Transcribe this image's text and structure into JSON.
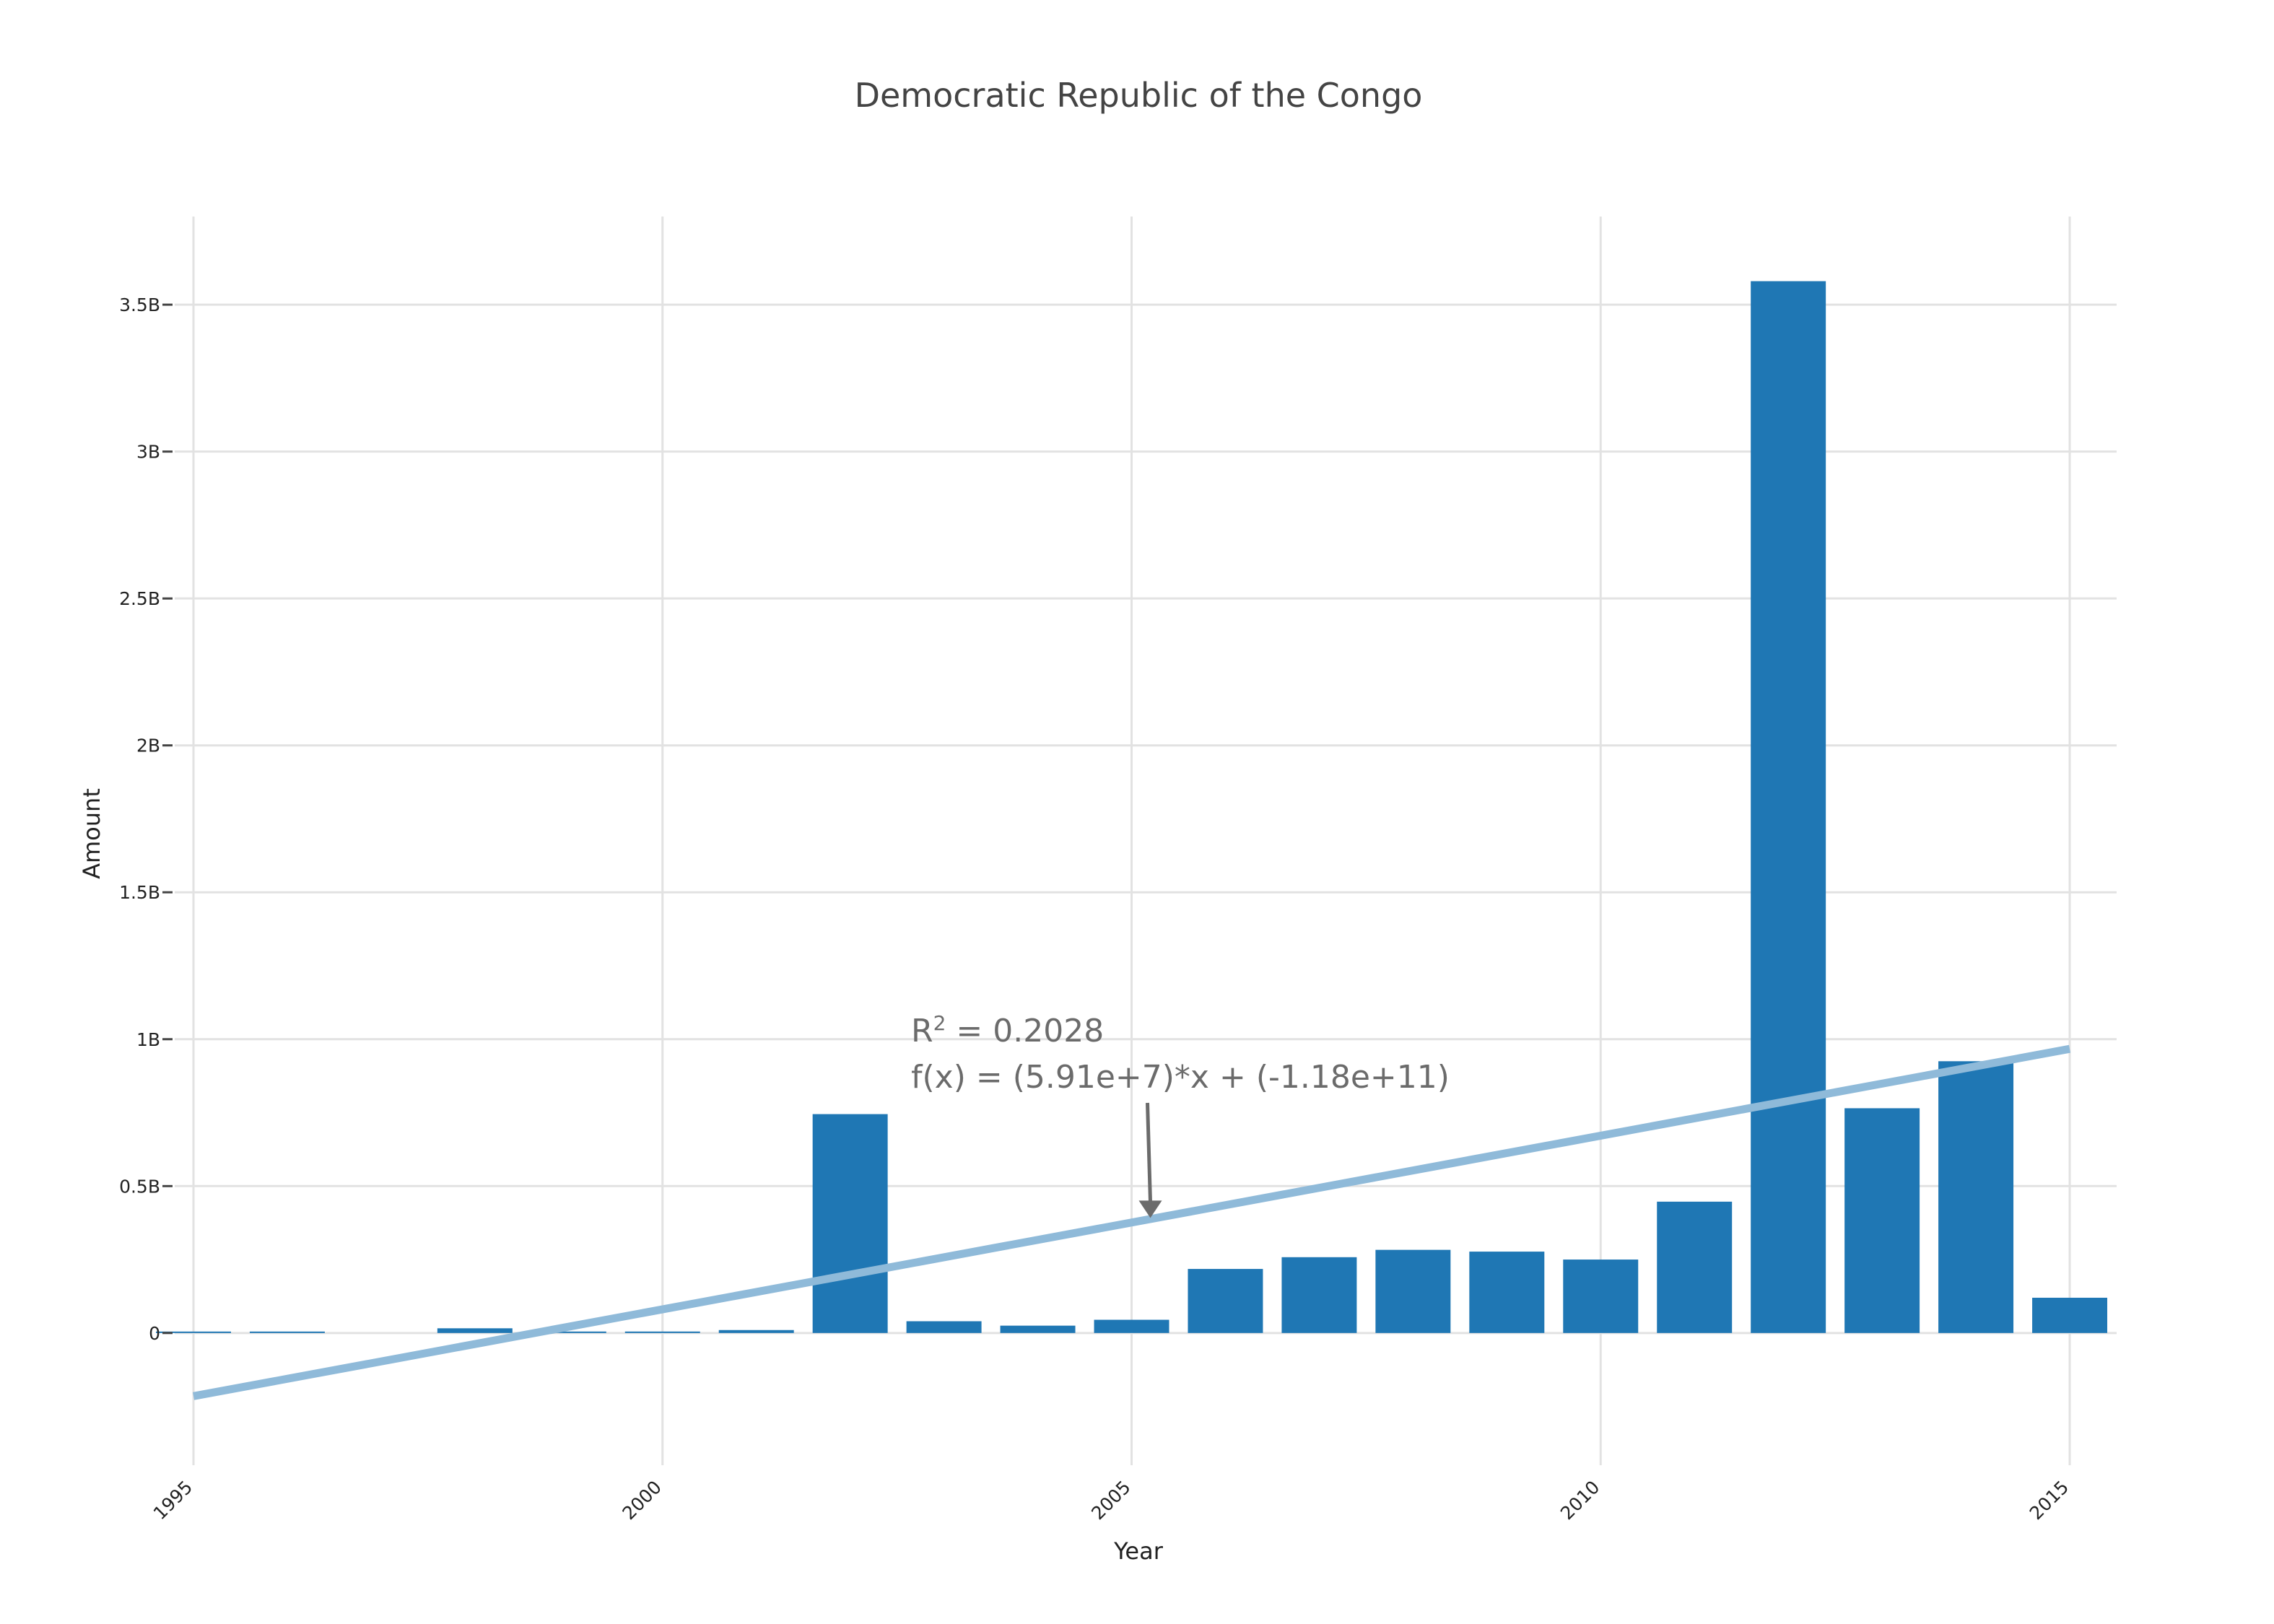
{
  "chart_data": {
    "type": "bar",
    "title": "Democratic Republic of the Congo",
    "xlabel": "Year",
    "ylabel": "Amount",
    "xlim": [
      1994.8,
      2015.5
    ],
    "ylim": [
      -450000000,
      3800000000
    ],
    "x_ticks": [
      1995,
      2000,
      2005,
      2010,
      2015
    ],
    "y_ticks": [
      {
        "value": 0,
        "label": "0"
      },
      {
        "value": 500000000,
        "label": "0.5B"
      },
      {
        "value": 1000000000,
        "label": "1B"
      },
      {
        "value": 1500000000,
        "label": "1.5B"
      },
      {
        "value": 2000000000,
        "label": "2B"
      },
      {
        "value": 2500000000,
        "label": "2.5B"
      },
      {
        "value": 3000000000,
        "label": "3B"
      },
      {
        "value": 3500000000,
        "label": "3.5B"
      }
    ],
    "grid": true,
    "bar_color": "#1f77b4",
    "trend_color": "#8fbad9",
    "annotation_color": "#6b6b6b",
    "years": [
      1995,
      1996,
      1997,
      1998,
      1999,
      2000,
      2001,
      2002,
      2003,
      2004,
      2005,
      2006,
      2007,
      2008,
      2009,
      2010,
      2011,
      2012,
      2013,
      2014,
      2015
    ],
    "values": [
      3000000,
      1000000,
      0,
      16000000,
      5000000,
      5000000,
      10000000,
      745000000,
      40000000,
      25000000,
      45000000,
      218000000,
      258000000,
      283000000,
      277000000,
      250000000,
      447000000,
      3580000000,
      765000000,
      925000000,
      120000000
    ],
    "trendline": {
      "x": [
        1995,
        2015
      ],
      "y": [
        -215000000,
        967000000
      ]
    },
    "annotation": {
      "r2_label": "R",
      "r2_sup": "2",
      "r2_value": " = 0.2028",
      "equation": "f(x) = (5.91e+7)*x + (-1.18e+11)",
      "point_x": 2005.2,
      "point_y": 382000000
    }
  }
}
